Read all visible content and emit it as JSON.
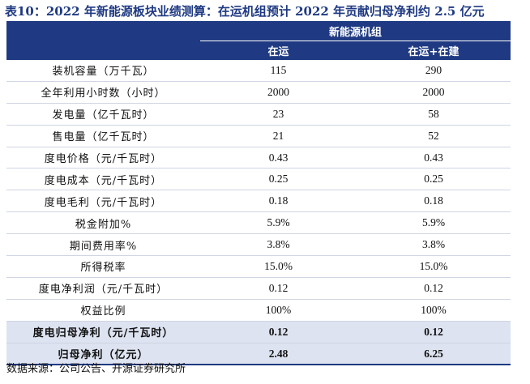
{
  "title": "表10：2022 年新能源板块业绩测算：在运机组预计 2022 年贡献归母净利约 2.5 亿元",
  "table": {
    "group_header": "新能源机组",
    "columns": [
      "在运",
      "在运+在建"
    ],
    "rows": [
      {
        "label": "装机容量（万千瓦）",
        "values": [
          "115",
          "290"
        ]
      },
      {
        "label": "全年利用小时数（小时）",
        "values": [
          "2000",
          "2000"
        ]
      },
      {
        "label": "发电量（亿千瓦时）",
        "values": [
          "23",
          "58"
        ]
      },
      {
        "label": "售电量（亿千瓦时）",
        "values": [
          "21",
          "52"
        ]
      },
      {
        "label": "度电价格（元/千瓦时）",
        "values": [
          "0.43",
          "0.43"
        ]
      },
      {
        "label": "度电成本（元/千瓦时）",
        "values": [
          "0.25",
          "0.25"
        ]
      },
      {
        "label": "度电毛利（元/千瓦时）",
        "values": [
          "0.18",
          "0.18"
        ]
      },
      {
        "label": "税金附加%",
        "values": [
          "5.9%",
          "5.9%"
        ]
      },
      {
        "label": "期间费用率%",
        "values": [
          "3.8%",
          "3.8%"
        ]
      },
      {
        "label": "所得税率",
        "values": [
          "15.0%",
          "15.0%"
        ]
      },
      {
        "label": "度电净利润（元/千瓦时）",
        "values": [
          "0.12",
          "0.12"
        ]
      },
      {
        "label": "权益比例",
        "values": [
          "100%",
          "100%"
        ]
      },
      {
        "label": "度电归母净利（元/千瓦时）",
        "values": [
          "0.12",
          "0.12"
        ]
      },
      {
        "label": "归母净利（亿元）",
        "values": [
          "2.48",
          "6.25"
        ]
      }
    ]
  },
  "source": "数据来源：公司公告、开源证券研究所",
  "colors": {
    "header_bg": "#1f3a82",
    "title": "#1f3a82",
    "highlight_bg": "#dde3f0"
  }
}
